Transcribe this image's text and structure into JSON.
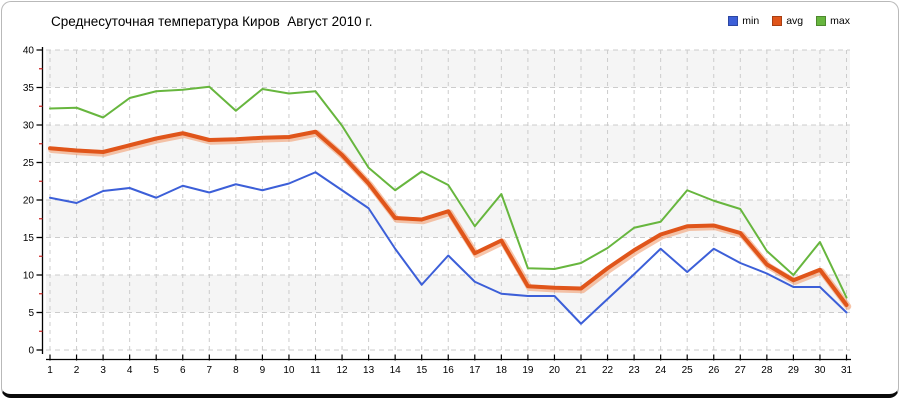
{
  "title": "Среднесуточная температура Киров  Август 2010 г.",
  "legend": [
    {
      "label": "min",
      "color": "#3c5fd8"
    },
    {
      "label": "avg",
      "color": "#e0551a"
    },
    {
      "label": "max",
      "color": "#67b63e"
    }
  ],
  "chart_data": {
    "type": "line",
    "title": "Среднесуточная температура Киров  Август 2010 г.",
    "x": [
      1,
      2,
      3,
      4,
      5,
      6,
      7,
      8,
      9,
      10,
      11,
      12,
      13,
      14,
      15,
      16,
      17,
      18,
      19,
      20,
      21,
      22,
      23,
      24,
      25,
      26,
      27,
      28,
      29,
      30,
      31
    ],
    "xlabel": "",
    "ylabel": "",
    "ylim": [
      0,
      40
    ],
    "ytick_step": 5,
    "yticks": [
      0,
      5,
      10,
      15,
      20,
      25,
      30,
      35,
      40
    ],
    "grid": true,
    "legend_position": "top-right",
    "series": [
      {
        "name": "min",
        "color": "#3c5fd8",
        "line_width": 2,
        "values": [
          20.3,
          19.6,
          21.2,
          21.6,
          20.3,
          21.9,
          21.0,
          22.1,
          21.3,
          22.2,
          23.7,
          21.3,
          18.9,
          13.5,
          8.7,
          12.6,
          9.1,
          7.5,
          7.2,
          7.2,
          3.5,
          6.8,
          10.1,
          13.5,
          10.4,
          13.5,
          11.6,
          10.2,
          8.4,
          8.4,
          5.0
        ]
      },
      {
        "name": "avg",
        "color": "#e0551a",
        "line_width": 4,
        "halo_color": "rgba(240,150,100,0.55)",
        "values": [
          26.9,
          26.6,
          26.4,
          27.3,
          28.2,
          28.9,
          28.0,
          28.1,
          28.3,
          28.4,
          29.1,
          26.0,
          22.2,
          17.6,
          17.4,
          18.5,
          12.9,
          14.6,
          8.5,
          8.3,
          8.2,
          10.9,
          13.3,
          15.4,
          16.5,
          16.6,
          15.6,
          11.4,
          9.3,
          10.7,
          6.0
        ]
      },
      {
        "name": "max",
        "color": "#67b63e",
        "line_width": 2,
        "values": [
          32.2,
          32.3,
          31.0,
          33.6,
          34.5,
          34.7,
          35.1,
          31.9,
          34.8,
          34.2,
          34.5,
          29.9,
          24.3,
          21.3,
          23.8,
          22.0,
          16.5,
          20.8,
          10.9,
          10.8,
          11.6,
          13.6,
          16.3,
          17.1,
          21.3,
          19.9,
          18.8,
          13.2,
          10.0,
          14.4,
          7.0
        ]
      }
    ],
    "style": {
      "band_colors": [
        "#ffffff",
        "#f5f5f5"
      ],
      "grid_color": "#cccccc",
      "axis_color": "#000000",
      "minor_tick_color": "#cc2222",
      "tick_label_color": "#000000"
    }
  }
}
